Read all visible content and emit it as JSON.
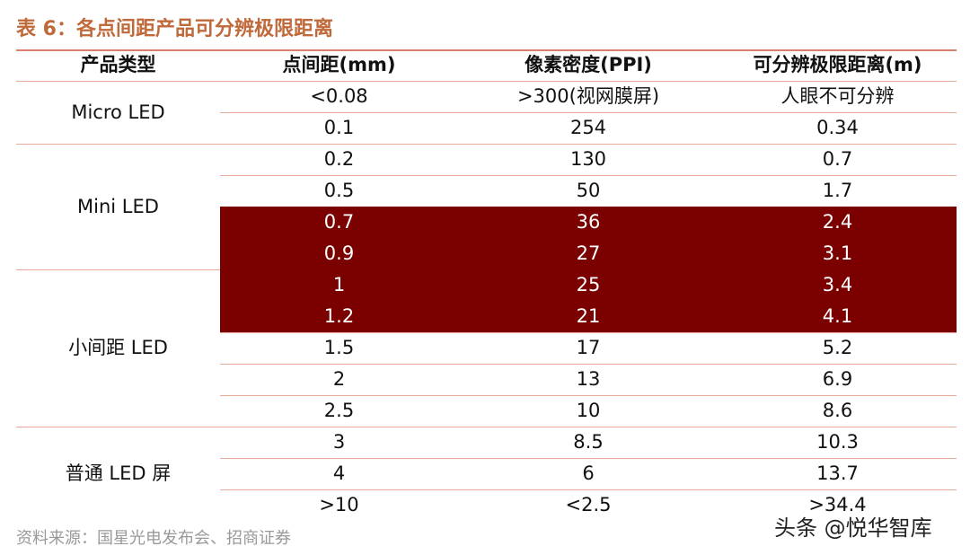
{
  "header": {
    "title": "表 6：各点间距产品可分辨极限距离"
  },
  "table": {
    "columns": [
      "产品类型",
      "点间距(mm)",
      "像素密度(PPI)",
      "可分辨极限距离(m)"
    ],
    "groups": [
      {
        "name": "Micro LED",
        "rows": [
          [
            "<0.08",
            ">300(视网膜屏)",
            "人眼不可分辨"
          ],
          [
            "0.1",
            "254",
            "0.34"
          ]
        ]
      },
      {
        "name": "Mini LED",
        "rows": [
          [
            "0.2",
            "130",
            "0.7"
          ],
          [
            "0.5",
            "50",
            "1.7"
          ],
          [
            "0.7",
            "36",
            "2.4"
          ],
          [
            "0.9",
            "27",
            "3.1"
          ]
        ]
      },
      {
        "name": "小间距 LED",
        "rows": [
          [
            "1",
            "25",
            "3.4"
          ],
          [
            "1.2",
            "21",
            "4.1"
          ],
          [
            "1.5",
            "17",
            "5.2"
          ],
          [
            "2",
            "13",
            "6.9"
          ],
          [
            "2.5",
            "10",
            "8.6"
          ]
        ]
      },
      {
        "name": "普通 LED 屏",
        "rows": [
          [
            "3",
            "8.5",
            "10.3"
          ],
          [
            "4",
            "6",
            "13.7"
          ],
          [
            ">10",
            "<2.5",
            ">34.4"
          ]
        ]
      }
    ]
  },
  "footer": {
    "source": "资料来源：国星光电发布会、招商证券",
    "watermark": "头条 @悦华智库"
  }
}
